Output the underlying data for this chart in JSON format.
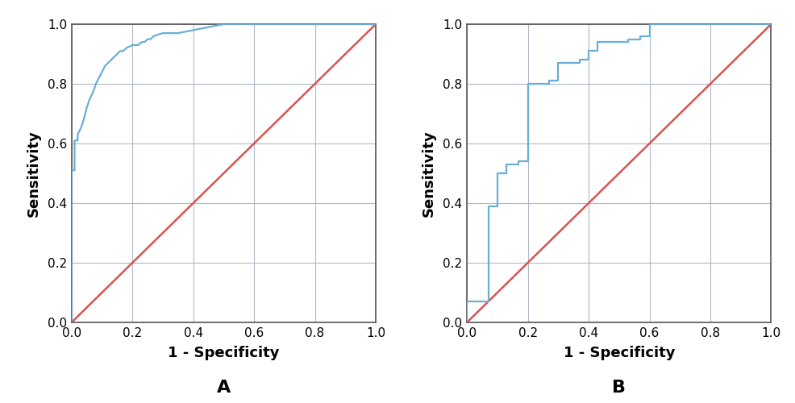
{
  "roc_A_fpr": [
    0.0,
    0.0,
    0.0,
    0.01,
    0.01,
    0.02,
    0.02,
    0.03,
    0.04,
    0.05,
    0.06,
    0.07,
    0.08,
    0.09,
    0.1,
    0.11,
    0.12,
    0.13,
    0.14,
    0.15,
    0.16,
    0.17,
    0.18,
    0.2,
    0.22,
    0.23,
    0.24,
    0.25,
    0.26,
    0.27,
    0.3,
    0.35,
    0.5,
    0.55,
    1.0
  ],
  "roc_A_tpr": [
    0.0,
    0.5,
    0.51,
    0.51,
    0.61,
    0.61,
    0.63,
    0.65,
    0.68,
    0.72,
    0.75,
    0.77,
    0.8,
    0.82,
    0.84,
    0.86,
    0.87,
    0.88,
    0.89,
    0.9,
    0.91,
    0.91,
    0.92,
    0.93,
    0.93,
    0.94,
    0.94,
    0.95,
    0.95,
    0.96,
    0.97,
    0.97,
    1.0,
    1.0,
    1.0
  ],
  "roc_B_fpr": [
    0.0,
    0.0,
    0.07,
    0.07,
    0.1,
    0.1,
    0.13,
    0.13,
    0.17,
    0.17,
    0.2,
    0.2,
    0.27,
    0.27,
    0.3,
    0.3,
    0.37,
    0.37,
    0.4,
    0.4,
    0.43,
    0.43,
    0.53,
    0.53,
    0.57,
    0.57,
    0.6,
    0.6,
    0.73,
    0.73,
    0.77,
    0.77,
    1.0
  ],
  "roc_B_tpr": [
    0.0,
    0.07,
    0.07,
    0.39,
    0.39,
    0.5,
    0.5,
    0.53,
    0.53,
    0.54,
    0.54,
    0.8,
    0.8,
    0.81,
    0.81,
    0.87,
    0.87,
    0.88,
    0.88,
    0.91,
    0.91,
    0.94,
    0.94,
    0.95,
    0.95,
    0.96,
    0.96,
    1.0,
    1.0,
    1.0,
    1.0,
    1.0,
    1.0
  ],
  "roc_color": "#6aaed6",
  "diag_color": "#d9534f",
  "xlabel": "1 - Specificity",
  "ylabel": "Sensitivity",
  "label_A": "A",
  "label_B": "B",
  "xlim": [
    0.0,
    1.0
  ],
  "ylim": [
    0.0,
    1.0
  ],
  "xticks": [
    0.0,
    0.2,
    0.4,
    0.6,
    0.8,
    1.0
  ],
  "yticks": [
    0.0,
    0.2,
    0.4,
    0.6,
    0.8,
    1.0
  ],
  "grid_color": "#b0b8c8",
  "bg_color": "#ffffff",
  "fig_bg": "#ffffff",
  "roc_linewidth": 1.6,
  "diag_linewidth": 1.8,
  "label_fontsize": 13,
  "tick_fontsize": 11,
  "panel_label_fontsize": 16,
  "spine_color": "#555555",
  "spine_linewidth": 1.2
}
